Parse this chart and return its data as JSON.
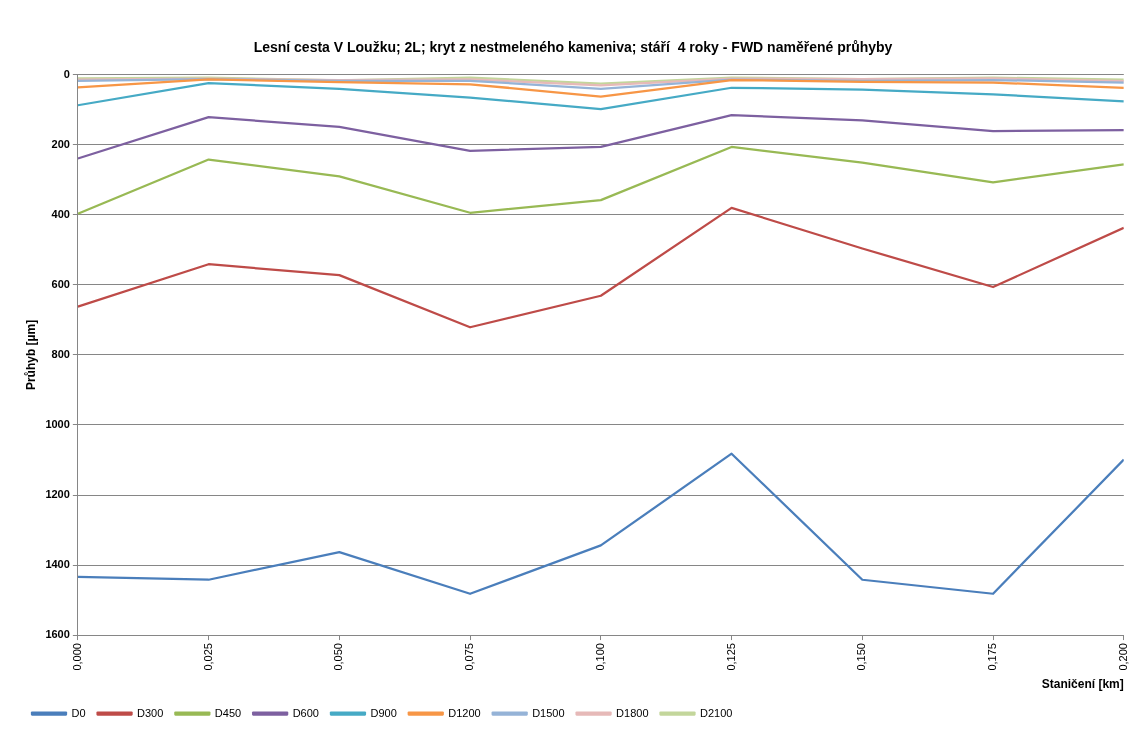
{
  "chart_data": {
    "type": "line",
    "title": "Lesní cesta V Loužku; 2L; kryt z nestmeleného kameniva; stáří  4 roky - FWD naměřené průhyby",
    "xlabel": "Staničení [km]",
    "ylabel": "Průhyb [µm]",
    "x": [
      0,
      0.025,
      0.05,
      0.075,
      0.1,
      0.125,
      0.15,
      0.175,
      0.2
    ],
    "xlim": [
      0,
      0.2
    ],
    "xticks": [
      {
        "value": 0,
        "label": "0,000"
      },
      {
        "value": 0.025,
        "label": "0,025"
      },
      {
        "value": 0.05,
        "label": "0,050"
      },
      {
        "value": 0.075,
        "label": "0,075"
      },
      {
        "value": 0.1,
        "label": "0,100"
      },
      {
        "value": 0.125,
        "label": "0,125"
      },
      {
        "value": 0.15,
        "label": "0,150"
      },
      {
        "value": 0.175,
        "label": "0,175"
      },
      {
        "value": 0.2,
        "label": "0,200"
      }
    ],
    "ylim": [
      1600,
      0
    ],
    "yticks": [
      0,
      200,
      400,
      600,
      800,
      1000,
      1200,
      1400,
      1600
    ],
    "grid": "y",
    "legend": "bottom left",
    "marker": "none",
    "line_style": "solid",
    "series": [
      {
        "name": "D0",
        "color": "#4a7ebb",
        "values": [
          1434,
          1442,
          1363,
          1482,
          1344,
          1082,
          1442,
          1482,
          1099
        ]
      },
      {
        "name": "D300",
        "color": "#be4b48",
        "values": [
          662,
          541,
          572,
          721,
          631,
          380,
          496,
          606,
          437
        ]
      },
      {
        "name": "D450",
        "color": "#98b954",
        "values": [
          397,
          242,
          290,
          394,
          358,
          206,
          251,
          307,
          256
        ]
      },
      {
        "name": "D600",
        "color": "#7d60a0",
        "values": [
          239,
          121,
          149,
          217,
          206,
          115,
          130,
          161,
          158
        ]
      },
      {
        "name": "D900",
        "color": "#46aac5",
        "values": [
          87,
          24,
          40,
          65,
          98,
          37,
          42,
          56,
          76
        ]
      },
      {
        "name": "D1200",
        "color": "#f79646",
        "values": [
          36,
          13,
          21,
          27,
          62,
          15,
          20,
          22,
          37
        ]
      },
      {
        "name": "D1500",
        "color": "#95b3d7",
        "values": [
          17,
          12,
          17,
          17,
          40,
          14,
          17,
          15,
          22
        ]
      },
      {
        "name": "D1800",
        "color": "#e6b9b8",
        "values": [
          14,
          11,
          15,
          13,
          30,
          11,
          12,
          10,
          18
        ]
      },
      {
        "name": "D2100",
        "color": "#c3d69b",
        "values": [
          10,
          8,
          16,
          8,
          25,
          8,
          12,
          8,
          14
        ]
      }
    ]
  }
}
